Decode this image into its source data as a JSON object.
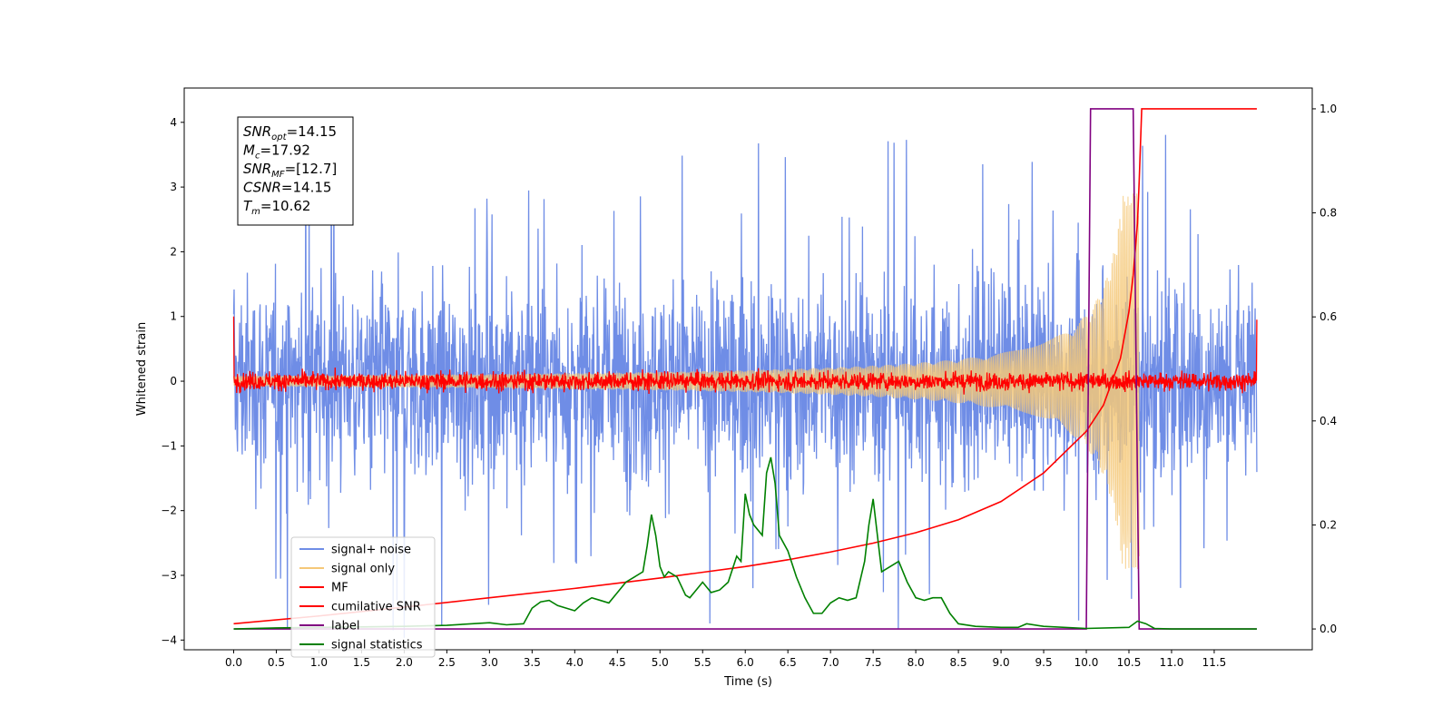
{
  "chart_data": {
    "type": "line",
    "xlabel": "Time (s)",
    "ylabel": "Whitened strain",
    "xlim": [
      -0.58,
      12.65
    ],
    "ylim": [
      -4.15,
      4.53
    ],
    "ylim_right": [
      -0.04,
      1.04
    ],
    "x_ticks": [
      "0.0",
      "0.5",
      "1.0",
      "1.5",
      "2.0",
      "2.5",
      "3.0",
      "3.5",
      "4.0",
      "4.5",
      "5.0",
      "5.5",
      "6.0",
      "6.5",
      "7.0",
      "7.5",
      "8.0",
      "8.5",
      "9.0",
      "9.5",
      "10.0",
      "10.5",
      "11.0",
      "11.5"
    ],
    "y_ticks": [
      "−4",
      "−3",
      "−2",
      "−1",
      "0",
      "1",
      "2",
      "3",
      "4"
    ],
    "y_ticks_right": [
      "0.0",
      "0.2",
      "0.4",
      "0.6",
      "0.8",
      "1.0"
    ],
    "grid": false,
    "legend_position": "lower-left",
    "annotation": [
      {
        "base": "SNR",
        "sub": "opt",
        "value": "=14.15"
      },
      {
        "base": "M",
        "sub": "c",
        "value": "=17.92"
      },
      {
        "base": "SNR",
        "sub": "MF",
        "value": "=[12.7]"
      },
      {
        "base": "CSNR",
        "sub": "",
        "value": "=14.15"
      },
      {
        "base": "T",
        "sub": "m",
        "value": "=10.62"
      }
    ],
    "series": [
      {
        "name": "signal+ noise",
        "color": "#6f8de6",
        "axis": "left",
        "kind": "noise",
        "x_range": [
          0.0,
          12.0
        ],
        "noise_std": 1.0,
        "peak_abs": 4.0
      },
      {
        "name": "signal only",
        "color": "#f5c878",
        "axis": "left",
        "kind": "chirp",
        "x_range": [
          0.0,
          10.62
        ],
        "envelope_max": 2.9,
        "merger_time": 10.62
      },
      {
        "name": "MF",
        "color": "#ff0000",
        "axis": "left",
        "kind": "noise",
        "x_range": [
          0.0,
          12.0
        ],
        "noise_std": 0.07
      },
      {
        "name": "cumilative SNR",
        "color": "#ff0000",
        "axis": "right",
        "x": [
          0.0,
          1.0,
          2.0,
          3.0,
          4.0,
          5.0,
          6.0,
          6.5,
          7.0,
          7.5,
          8.0,
          8.5,
          9.0,
          9.5,
          10.0,
          10.2,
          10.4,
          10.5,
          10.55,
          10.6,
          10.62,
          10.65,
          12.0
        ],
        "y": [
          0.01,
          0.025,
          0.042,
          0.06,
          0.078,
          0.098,
          0.12,
          0.133,
          0.148,
          0.165,
          0.185,
          0.21,
          0.245,
          0.3,
          0.38,
          0.43,
          0.52,
          0.61,
          0.68,
          0.78,
          0.86,
          1.0,
          1.0
        ]
      },
      {
        "name": "label",
        "color": "#800080",
        "axis": "right",
        "x": [
          0.0,
          10.0,
          10.05,
          10.55,
          10.62,
          12.0
        ],
        "y": [
          0.0,
          0.0,
          1.0,
          1.0,
          0.0,
          0.0
        ]
      },
      {
        "name": "signal statistics",
        "color": "#008000",
        "axis": "right",
        "x": [
          0.0,
          0.5,
          1.0,
          1.5,
          2.0,
          2.5,
          2.8,
          3.0,
          3.2,
          3.4,
          3.5,
          3.6,
          3.7,
          3.8,
          3.9,
          4.0,
          4.1,
          4.2,
          4.3,
          4.4,
          4.5,
          4.6,
          4.7,
          4.8,
          4.85,
          4.9,
          4.95,
          5.0,
          5.05,
          5.1,
          5.2,
          5.3,
          5.35,
          5.4,
          5.5,
          5.6,
          5.7,
          5.8,
          5.9,
          5.95,
          6.0,
          6.05,
          6.1,
          6.2,
          6.25,
          6.3,
          6.35,
          6.4,
          6.5,
          6.6,
          6.7,
          6.8,
          6.9,
          7.0,
          7.1,
          7.2,
          7.3,
          7.4,
          7.45,
          7.5,
          7.55,
          7.6,
          7.7,
          7.8,
          7.9,
          8.0,
          8.1,
          8.2,
          8.3,
          8.4,
          8.5,
          8.7,
          9.0,
          9.2,
          9.3,
          9.5,
          10.0,
          10.5,
          10.6,
          10.7,
          10.8,
          11.0,
          12.0
        ],
        "y": [
          0.0,
          0.002,
          0.003,
          0.004,
          0.005,
          0.007,
          0.01,
          0.012,
          0.008,
          0.01,
          0.04,
          0.052,
          0.055,
          0.045,
          0.04,
          0.035,
          0.05,
          0.06,
          0.055,
          0.05,
          0.07,
          0.09,
          0.1,
          0.11,
          0.16,
          0.22,
          0.18,
          0.12,
          0.1,
          0.11,
          0.1,
          0.065,
          0.06,
          0.07,
          0.09,
          0.07,
          0.075,
          0.09,
          0.14,
          0.13,
          0.26,
          0.22,
          0.2,
          0.18,
          0.3,
          0.33,
          0.28,
          0.18,
          0.15,
          0.1,
          0.06,
          0.03,
          0.03,
          0.05,
          0.06,
          0.055,
          0.06,
          0.13,
          0.2,
          0.25,
          0.18,
          0.11,
          0.12,
          0.13,
          0.09,
          0.06,
          0.055,
          0.06,
          0.06,
          0.03,
          0.01,
          0.005,
          0.003,
          0.003,
          0.01,
          0.005,
          0.001,
          0.003,
          0.015,
          0.01,
          0.001,
          0.0,
          0.0
        ]
      }
    ]
  }
}
